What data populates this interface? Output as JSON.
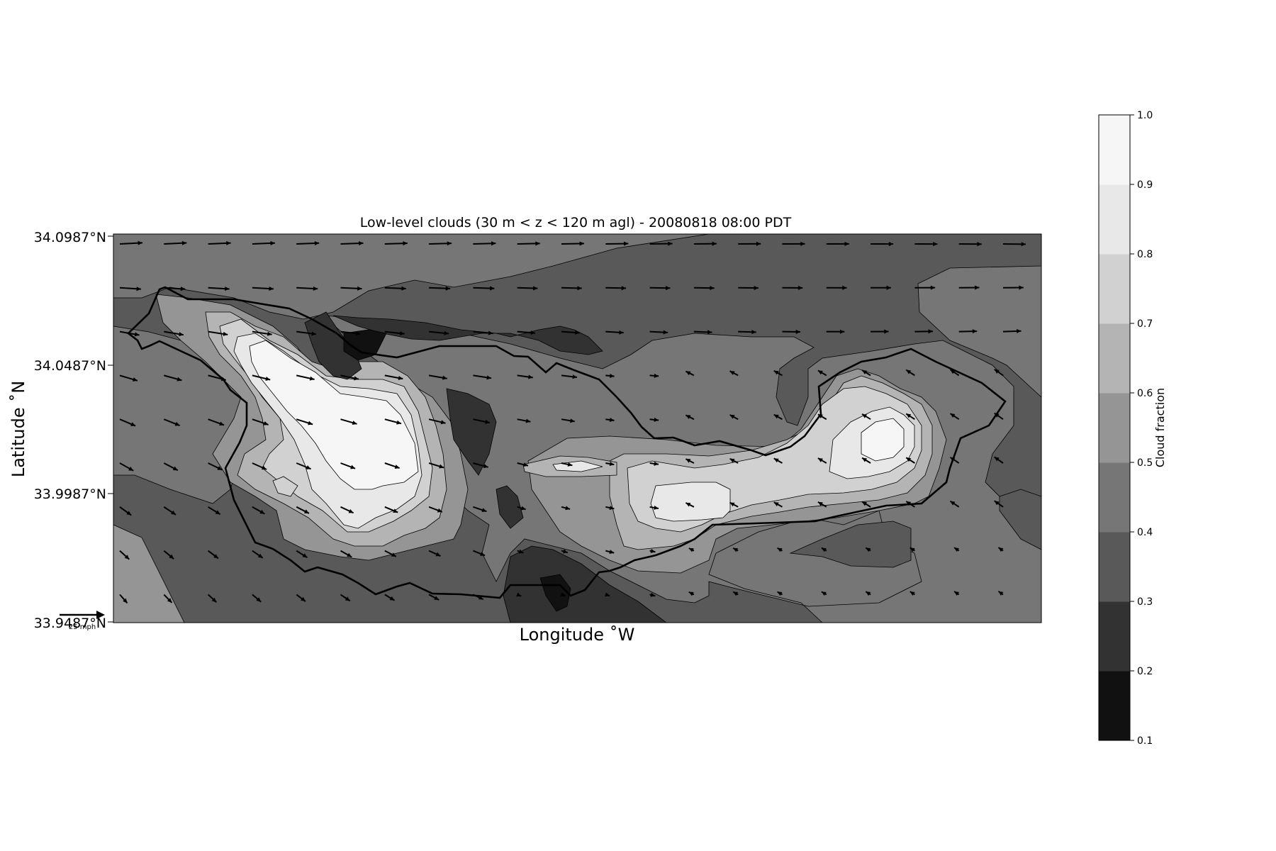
{
  "title": "Low-level clouds (30 m < z < 120 m agl) - 20080818 08:00 PDT",
  "axes": {
    "xlabel": "Longitude $^\\circ$W",
    "xlabel_display": "Longitude ˚W",
    "ylabel_display": "Latitude ˚N",
    "y_ticks": [
      "34.0987°N",
      "34.0487°N",
      "33.9987°N",
      "33.9487°N"
    ],
    "lat_range": [
      33.9487,
      34.0987
    ]
  },
  "colorbar": {
    "label": "Cloud fraction",
    "levels": [
      0.1,
      0.2,
      0.3,
      0.4,
      0.5,
      0.6,
      0.7,
      0.8,
      0.9,
      1.0
    ],
    "tick_labels": [
      "1.0",
      "0.9",
      "0.8",
      "0.7",
      "0.6",
      "0.5",
      "0.4",
      "0.3",
      "0.2",
      "0.1"
    ],
    "band_colors": [
      "#111111",
      "#323232",
      "#595959",
      "#767676",
      "#959595",
      "#b4b4b4",
      "#d1d1d1",
      "#e8e8e8",
      "#f6f6f6"
    ]
  },
  "quiver_key": {
    "label": "25 mph"
  },
  "colors": {
    "coastline": "#000000",
    "arrow": "#000000",
    "contour_line": "#000000"
  },
  "chart_data": {
    "type": "contourf",
    "title": "Low-level clouds (30 m < z < 120 m agl) - 20080818 08:00 PDT",
    "xlabel": "Longitude ˚W",
    "ylabel": "Latitude ˚N",
    "ylim": [
      33.9487,
      34.0987
    ],
    "levels": [
      0.1,
      0.2,
      0.3,
      0.4,
      0.5,
      0.6,
      0.7,
      0.8,
      0.9,
      1.0
    ],
    "colorbar_label": "Cloud fraction",
    "overlays": [
      "wind vectors (quiver)",
      "coastline"
    ],
    "quiver_key": "25 mph"
  }
}
